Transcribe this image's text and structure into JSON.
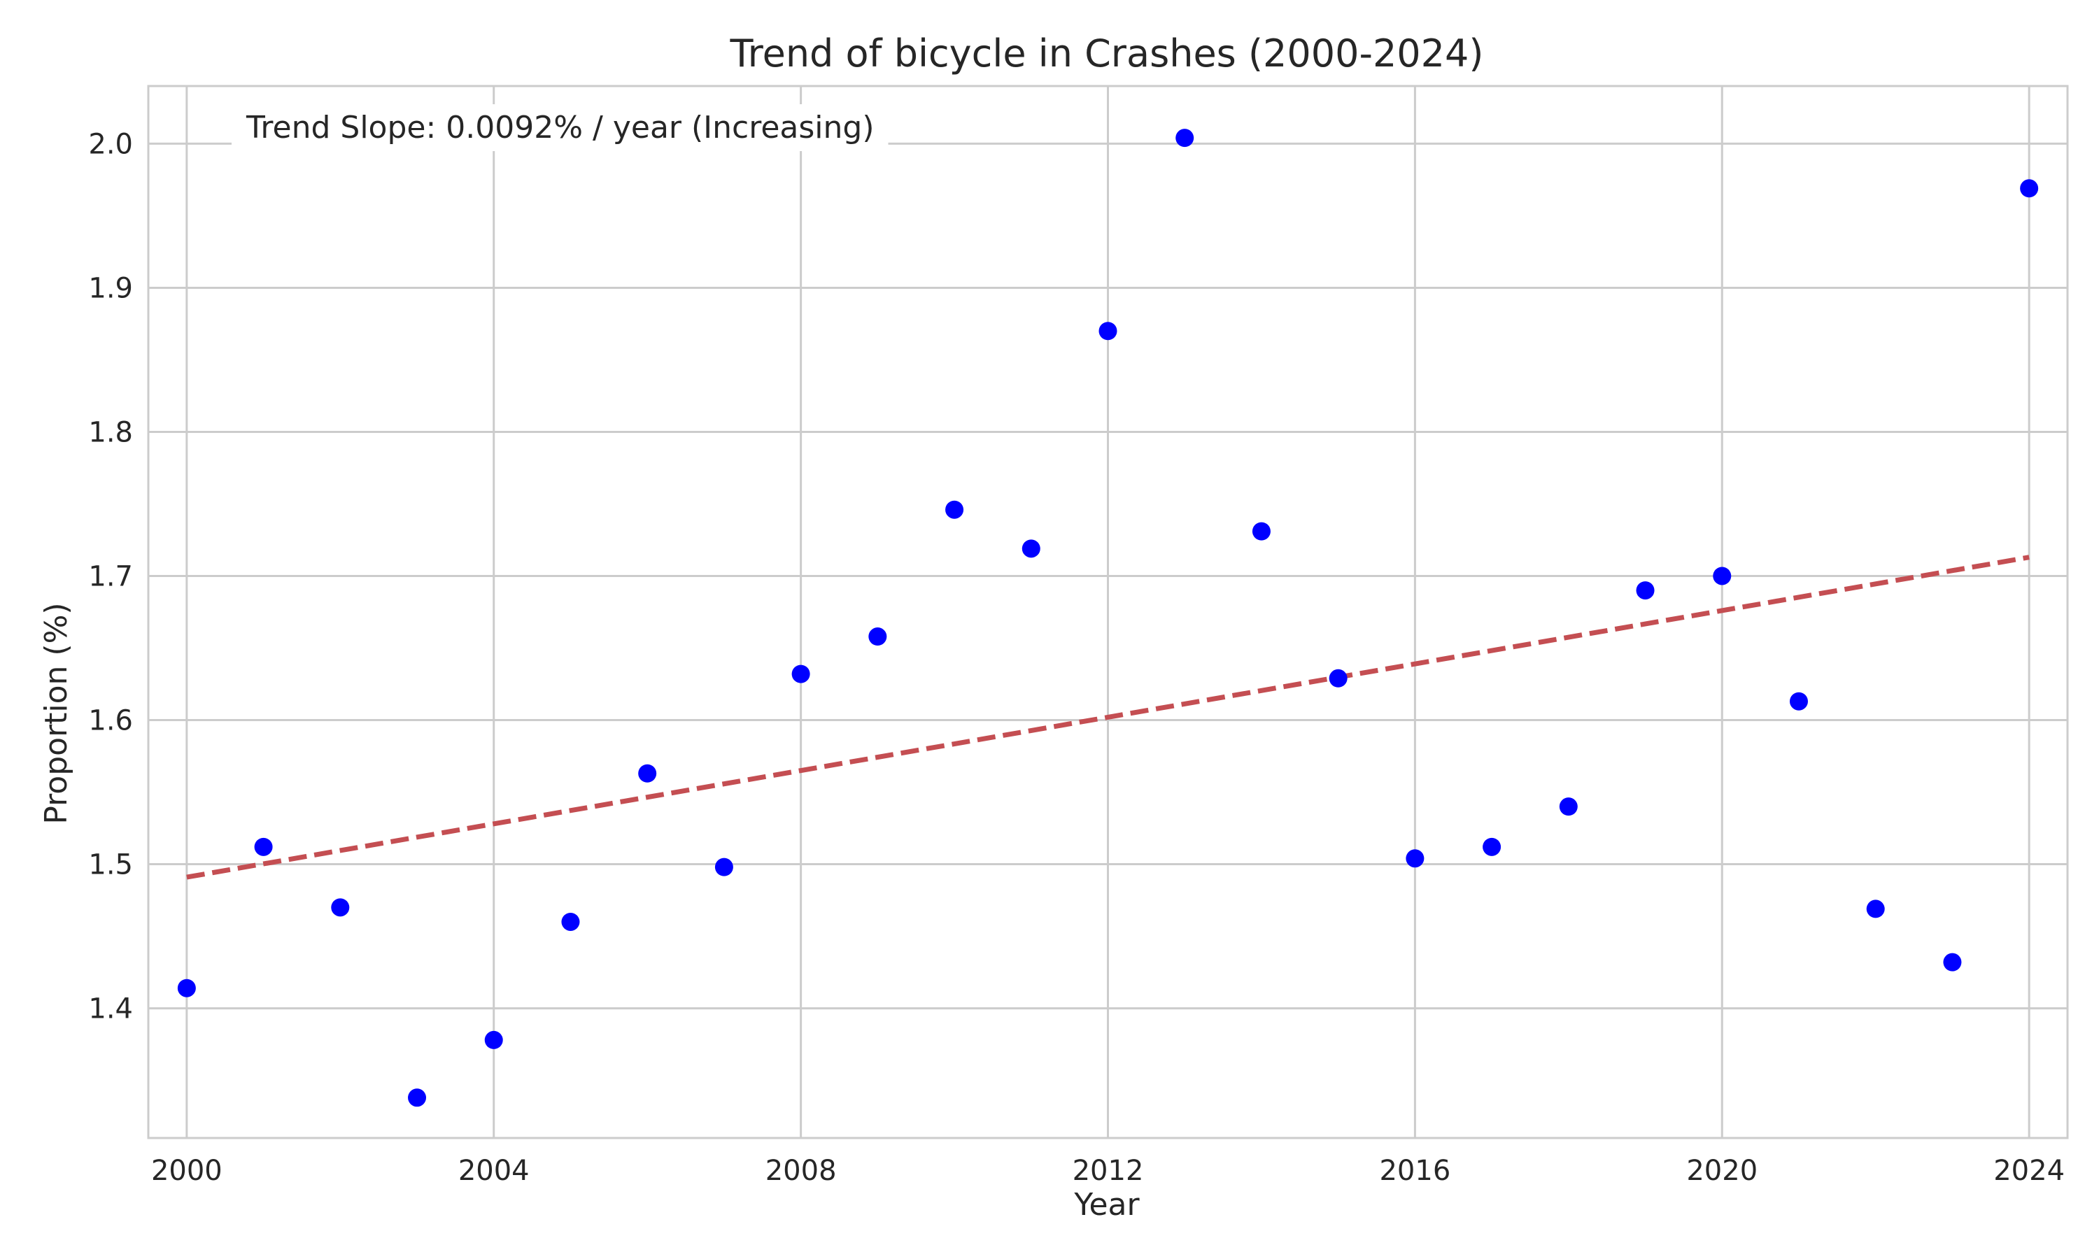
{
  "chart_data": {
    "type": "scatter",
    "title": "Trend of bicycle in Crashes (2000-2024)",
    "xlabel": "Year",
    "ylabel": "Proportion (%)",
    "xlim": [
      1999.5,
      2024.5
    ],
    "ylim": [
      1.31,
      2.04
    ],
    "x_ticks": [
      2000,
      2004,
      2008,
      2012,
      2016,
      2020,
      2024
    ],
    "y_ticks": [
      1.4,
      1.5,
      1.6,
      1.7,
      1.8,
      1.9,
      2.0
    ],
    "y_tick_labels": [
      "1.4",
      "1.5",
      "1.6",
      "1.7",
      "1.8",
      "1.9",
      "2.0"
    ],
    "grid": true,
    "annotation": "Trend Slope: 0.0092% / year (Increasing)",
    "series": [
      {
        "type": "scatter",
        "color": "#0000ff",
        "x": [
          2000,
          2001,
          2002,
          2003,
          2004,
          2005,
          2006,
          2007,
          2008,
          2009,
          2010,
          2011,
          2012,
          2013,
          2014,
          2015,
          2016,
          2017,
          2018,
          2019,
          2020,
          2021,
          2022,
          2023,
          2024
        ],
        "y": [
          1.414,
          1.512,
          1.47,
          1.338,
          1.378,
          1.46,
          1.563,
          1.498,
          1.632,
          1.658,
          1.746,
          1.719,
          1.87,
          2.004,
          1.731,
          1.629,
          1.504,
          1.512,
          1.54,
          1.69,
          1.7,
          1.613,
          1.469,
          1.432,
          1.969
        ]
      },
      {
        "type": "line",
        "style": "dashed",
        "color": "#c44e52",
        "x": [
          2000,
          2024
        ],
        "y": [
          1.491,
          1.713
        ]
      }
    ]
  }
}
